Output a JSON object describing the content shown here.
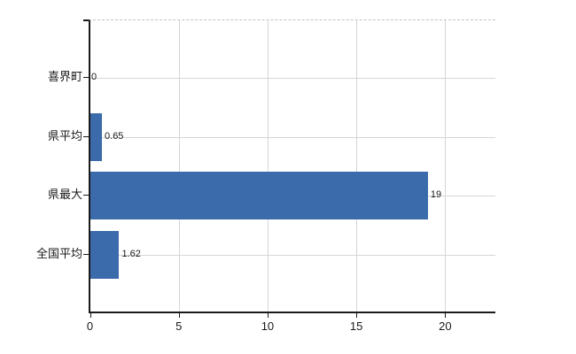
{
  "chart_data": {
    "type": "bar",
    "orientation": "horizontal",
    "title": "",
    "categories": [
      "喜界町",
      "県平均",
      "県最大",
      "全国平均"
    ],
    "values": [
      0,
      0.65,
      19,
      1.62
    ],
    "value_labels": [
      "0",
      "0.65",
      "19",
      "1.62"
    ],
    "x_ticks": [
      0,
      5,
      10,
      15,
      20
    ],
    "x_tick_labels": [
      "0",
      "5",
      "10",
      "15",
      "20"
    ],
    "xlim": [
      0,
      22.8
    ],
    "grid": true,
    "legend": false,
    "bar_color": "#3c6bac",
    "hgrid_color": "#d3d8d1",
    "vgrid_color": "#d6d5da",
    "axis_color": "#1a1a1a",
    "text_color": "#1a1a1a",
    "background_color": "#ffffff"
  }
}
